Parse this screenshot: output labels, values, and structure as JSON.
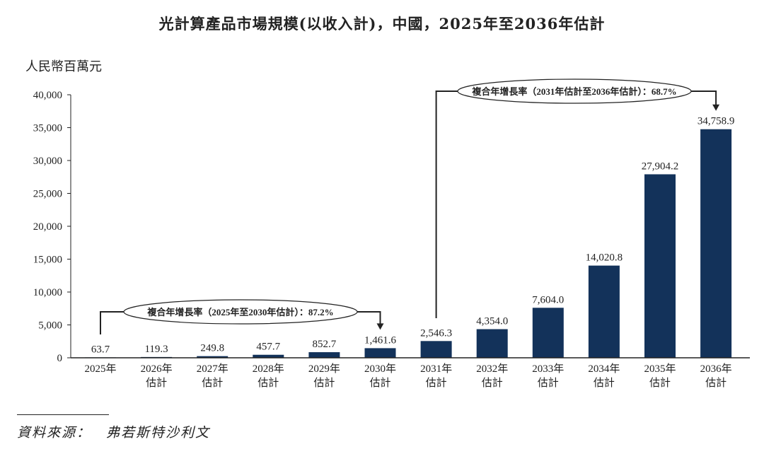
{
  "chart_data": {
    "type": "bar",
    "title": "光計算產品市場規模(以收入計)，中國，2025年至2036年估計",
    "ylabel": "人民幣百萬元",
    "xlabel": "",
    "ylim": [
      0,
      40000
    ],
    "yticks": [
      0,
      5000,
      10000,
      15000,
      20000,
      25000,
      30000,
      35000,
      40000
    ],
    "ytick_labels": [
      "0",
      "5,000",
      "10,000",
      "15,000",
      "20,000",
      "25,000",
      "30,000",
      "35,000",
      "40,000"
    ],
    "categories": [
      [
        "2025年"
      ],
      [
        "2026年",
        "估計"
      ],
      [
        "2027年",
        "估計"
      ],
      [
        "2028年",
        "估計"
      ],
      [
        "2029年",
        "估計"
      ],
      [
        "2030年",
        "估計"
      ],
      [
        "2031年",
        "估計"
      ],
      [
        "2032年",
        "估計"
      ],
      [
        "2033年",
        "估計"
      ],
      [
        "2034年",
        "估計"
      ],
      [
        "2035年",
        "估計"
      ],
      [
        "2036年",
        "估計"
      ]
    ],
    "values": [
      63.7,
      119.3,
      249.8,
      457.7,
      852.7,
      1461.6,
      2546.3,
      4354.0,
      7604.0,
      14020.8,
      27904.2,
      34758.9
    ],
    "value_labels": [
      "63.7",
      "119.3",
      "249.8",
      "457.7",
      "852.7",
      "1,461.6",
      "2,546.3",
      "4,354.0",
      "7,604.0",
      "14,020.8",
      "27,904.2",
      "34,758.9"
    ],
    "bar_color": "#13325a",
    "grid": false,
    "annotations": [
      {
        "text": "複合年增長率（2025年至2030年估計）：87.2%",
        "from_index": 0,
        "to_index": 5
      },
      {
        "text": "複合年增長率（2031年估計至2036年估計）：68.7%",
        "from_index": 6,
        "to_index": 11
      }
    ]
  },
  "source": "資料來源：　弗若斯特沙利文"
}
